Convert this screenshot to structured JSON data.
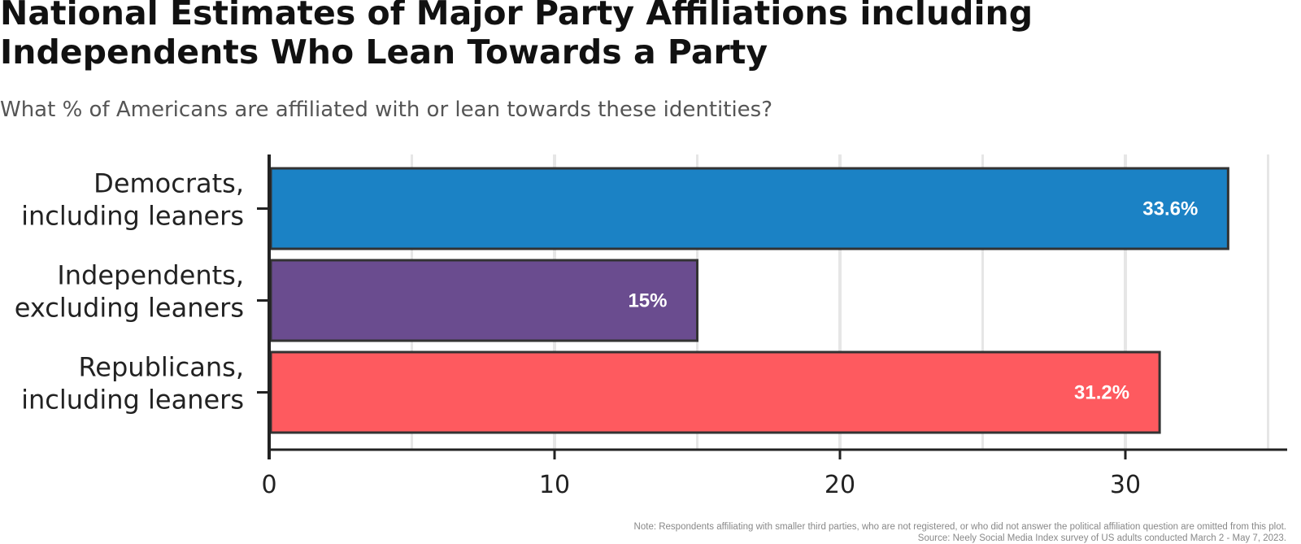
{
  "title_lines": [
    "National Estimates of Major Party Affiliations including",
    "Independents Who Lean Towards a Party"
  ],
  "subtitle": "What % of Americans are affiliated with or lean towards these identities?",
  "note": "Note: Respondents affiliating with smaller third parties, who are not registered, or who did not answer the political affiliation question are omitted from this plot.",
  "source": "Source: Neely Social Media Index survey of US adults conducted March 2 - May 7, 2023.",
  "colors": {
    "democrats": "#1b82c5",
    "independents": "#6a4c8f",
    "republicans": "#fe5a5f",
    "bar_outline": "#333333",
    "grid": "#e6e6e6",
    "axis": "#222222",
    "label_text": "#ffffff"
  },
  "chart_data": {
    "type": "bar",
    "orientation": "horizontal",
    "categories": [
      [
        "Democrats,",
        "including leaners"
      ],
      [
        "Independents,",
        "excluding leaners"
      ],
      [
        "Republicans,",
        "including leaners"
      ]
    ],
    "values": [
      33.6,
      15,
      31.2
    ],
    "value_labels": [
      "33.6%",
      "15%",
      "31.2%"
    ],
    "color_keys": [
      "democrats",
      "independents",
      "republicans"
    ],
    "xlim": [
      0,
      35
    ],
    "xticks": [
      0,
      10,
      20,
      30
    ],
    "xtick_labels": [
      "0",
      "10",
      "20",
      "30"
    ],
    "minor_grid": [
      5,
      15,
      25,
      35
    ],
    "grid": true,
    "legend": "none"
  }
}
